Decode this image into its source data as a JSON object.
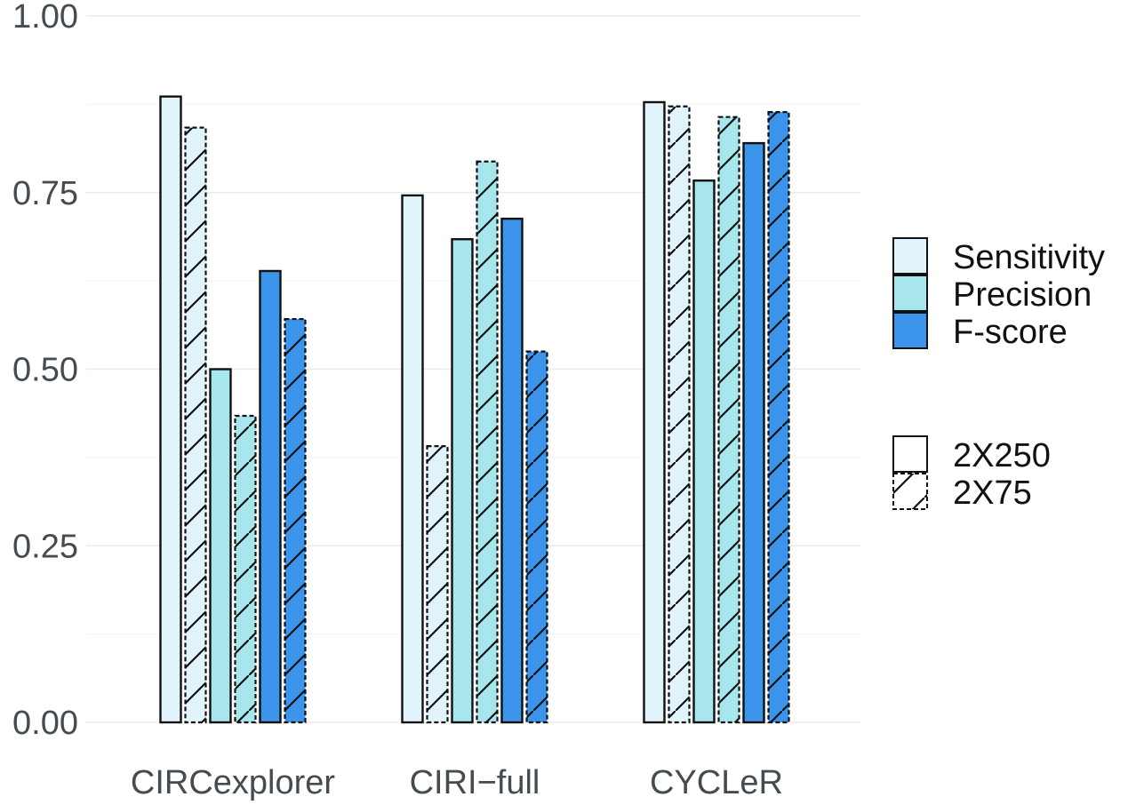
{
  "chart_data": {
    "type": "bar",
    "title": "",
    "xlabel": "",
    "ylabel": "",
    "ylim": [
      0,
      1
    ],
    "yticks": [
      "0.00",
      "0.25",
      "0.50",
      "0.75",
      "1.00"
    ],
    "ytick_values": [
      0,
      0.25,
      0.5,
      0.75,
      1.0
    ],
    "grid": true,
    "categories": [
      "CIRCexplorer",
      "CIRI−full",
      "CYCLeR"
    ],
    "metrics": [
      "Sensitivity",
      "Precision",
      "F-score"
    ],
    "read_lengths": [
      "2X250",
      "2X75"
    ],
    "series": [
      {
        "name": "Sensitivity 2X250",
        "metric": "Sensitivity",
        "read_length": "2X250",
        "values": [
          0.886,
          0.746,
          0.878
        ]
      },
      {
        "name": "Sensitivity 2X75",
        "metric": "Sensitivity",
        "read_length": "2X75",
        "values": [
          0.842,
          0.391,
          0.872
        ]
      },
      {
        "name": "Precision 2X250",
        "metric": "Precision",
        "read_length": "2X250",
        "values": [
          0.5,
          0.684,
          0.767
        ]
      },
      {
        "name": "Precision 2X75",
        "metric": "Precision",
        "read_length": "2X75",
        "values": [
          0.434,
          0.794,
          0.857
        ]
      },
      {
        "name": "F-score 2X250",
        "metric": "F-score",
        "read_length": "2X250",
        "values": [
          0.639,
          0.713,
          0.82
        ]
      },
      {
        "name": "F-score 2X75",
        "metric": "F-score",
        "read_length": "2X75",
        "values": [
          0.571,
          0.525,
          0.864
        ]
      }
    ],
    "colors": {
      "Sensitivity": "#e1f4fc",
      "Precision": "#a6e6ec",
      "F-score": "#3c94eb"
    },
    "legend": {
      "placement": "right",
      "fill_entries": [
        "Sensitivity",
        "Precision",
        "F-score"
      ],
      "pattern_entries": [
        {
          "label": "2X250",
          "pattern": "none"
        },
        {
          "label": "2X75",
          "pattern": "stripe"
        }
      ]
    }
  }
}
